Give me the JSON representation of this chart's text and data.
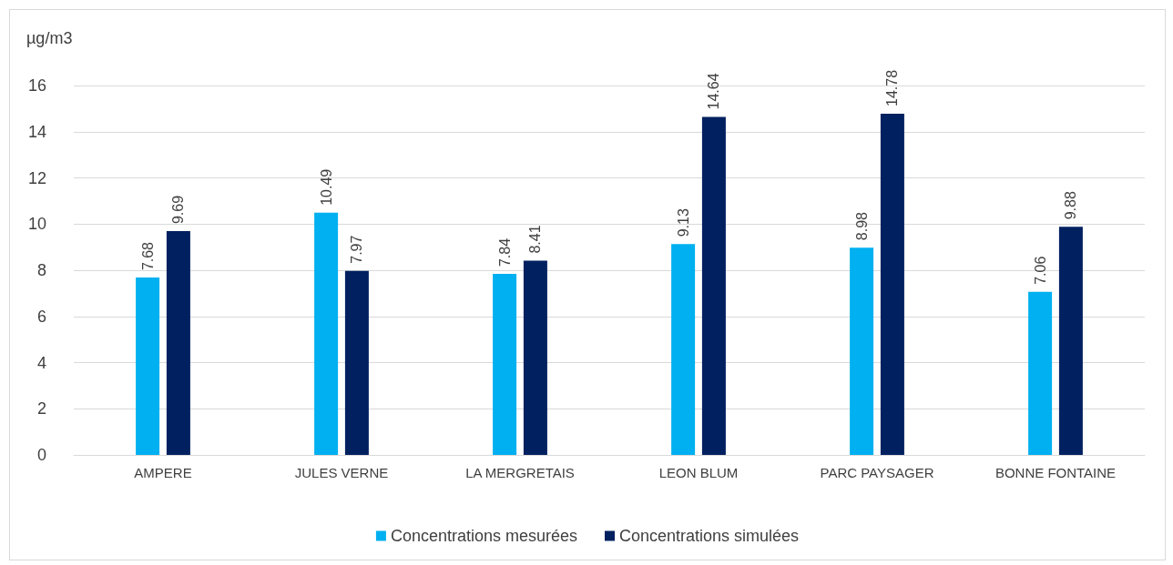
{
  "chart_data": {
    "type": "bar",
    "ylabel": "µg/m3",
    "categories": [
      "AMPERE",
      "JULES VERNE",
      "LA MERGRETAIS",
      "LEON BLUM",
      "PARC PAYSAGER",
      "BONNE FONTAINE"
    ],
    "series": [
      {
        "name": "Concentrations mesurées",
        "color": "#00b0f0",
        "values": [
          7.68,
          10.49,
          7.84,
          9.13,
          8.98,
          7.06
        ]
      },
      {
        "name": "Concentrations simulées",
        "color": "#002060",
        "values": [
          9.69,
          7.97,
          8.41,
          14.64,
          14.78,
          9.88
        ]
      }
    ],
    "ylim": [
      0,
      16
    ],
    "yticks": [
      0,
      2,
      4,
      6,
      8,
      10,
      12,
      14,
      16
    ],
    "grid": "y",
    "legend": "bottom",
    "data_labels": true
  }
}
